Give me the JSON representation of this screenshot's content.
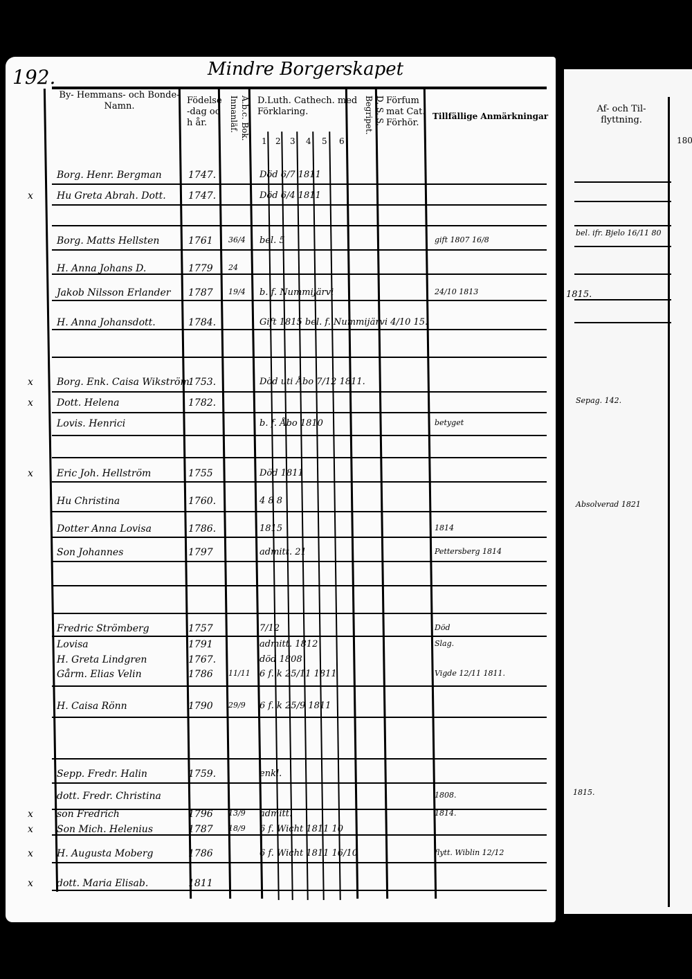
{
  "page_number": "192.",
  "title": "Mindre Borgerskapet",
  "headers": {
    "name": "By- Hemmans- och Bonde-Namn.",
    "birth": "Födelse-dag och år.",
    "abc": "A.b.c. Bok. Innanläf.",
    "catech": "D.Luth. Cathech. med Förklaring.",
    "catech_sub": [
      "1",
      "2",
      "3",
      "4",
      "5",
      "6"
    ],
    "dss": "D. S. S. Begripet.",
    "missed": "Förfummat Cat. Förhör.",
    "remarks": "Tillfällige Anmärkningar",
    "right_moves": "Af- och Til- flyttning.",
    "right_year": "180"
  },
  "entries": [
    {
      "mark": "",
      "name": "Borg. Henr. Bergman",
      "year": "1747.",
      "day": "",
      "notes": "Död 6/7 1811",
      "remarks": ""
    },
    {
      "mark": "x",
      "name": "Hu Greta Abrah. Dott.",
      "year": "1747.",
      "day": "",
      "notes": "Död 6/4 1811",
      "remarks": ""
    },
    {
      "mark": "",
      "name": "Borg. Matts Hellsten",
      "year": "1761",
      "day": "36/4",
      "notes": "bel. 5",
      "remarks": "gift 1807 16/8"
    },
    {
      "mark": "",
      "name": "H. Anna Johans D.",
      "year": "1779",
      "day": "24",
      "notes": "",
      "remarks": ""
    },
    {
      "mark": "",
      "name": "Jakob Nilsson Erlander",
      "year": "1787",
      "day": "19/4",
      "notes": "b. f. Nummijärvi",
      "remarks": "24/10 1813"
    },
    {
      "mark": "",
      "name": "H. Anna Johansdott.",
      "year": "1784.",
      "day": "",
      "notes": "Gift 1815 bel. f. Nummijärvi 4/10 15.",
      "remarks": ""
    },
    {
      "mark": "x",
      "name": "Borg. Enk. Caisa Wikström",
      "year": "1753.",
      "day": "",
      "notes": "Död uti Åbo 7/12 1811.",
      "remarks": ""
    },
    {
      "mark": "x",
      "name": "Dott. Helena",
      "year": "1782.",
      "day": "",
      "notes": "",
      "remarks": ""
    },
    {
      "mark": "",
      "name": "Lovis. Henrici",
      "year": "",
      "day": "",
      "notes": "b. f. Åbo 1810",
      "remarks": "betyget"
    },
    {
      "mark": "x",
      "name": "Eric Joh. Hellström",
      "year": "1755",
      "day": "",
      "notes": "Död 1811",
      "remarks": ""
    },
    {
      "mark": "",
      "name": "Hu Christina",
      "year": "1760.",
      "day": "",
      "notes": "4 8 8",
      "remarks": ""
    },
    {
      "mark": "",
      "name": "Dotter Anna Lovisa",
      "year": "1786.",
      "day": "",
      "notes": "1815",
      "remarks": "1814"
    },
    {
      "mark": "",
      "name": "Son Johannes",
      "year": "1797",
      "day": "",
      "notes": "admitt. 21",
      "remarks": "Pettersberg 1814"
    },
    {
      "mark": "",
      "name": "Fredric Strömberg",
      "year": "1757",
      "day": "",
      "notes": "7/12",
      "remarks": "Död"
    },
    {
      "mark": "",
      "name": "Lovisa",
      "year": "1791",
      "day": "",
      "notes": "admitt. 1812",
      "remarks": "Slag."
    },
    {
      "mark": "",
      "name": "H. Greta Lindgren",
      "year": "1767.",
      "day": "",
      "notes": "död 1808",
      "remarks": ""
    },
    {
      "mark": "",
      "name": "Gårm. Elias Velin",
      "year": "1786",
      "day": "11/11",
      "notes": "6 f. k 25/11 1811",
      "remarks": "Vigde 12/11 1811."
    },
    {
      "mark": "",
      "name": "H. Caisa Rönn",
      "year": "1790",
      "day": "29/9",
      "notes": "6 f. k 25/9 1811",
      "remarks": ""
    },
    {
      "mark": "",
      "name": "Sepp. Fredr. Halin",
      "year": "1759.",
      "day": "",
      "notes": "enkl.",
      "remarks": ""
    },
    {
      "mark": "",
      "name": "dott. Fredr. Christina",
      "year": "",
      "day": "",
      "notes": "",
      "remarks": "1808."
    },
    {
      "mark": "x",
      "name": "son Fredrich",
      "year": "1796",
      "day": "13/9",
      "notes": "admitt.",
      "remarks": "1814."
    },
    {
      "mark": "x",
      "name": "Son Mich. Helenius",
      "year": "1787",
      "day": "18/9",
      "notes": "6 f. Wicht 1811 10",
      "remarks": ""
    },
    {
      "mark": "x",
      "name": "H. Augusta Moberg",
      "year": "1786",
      "day": "",
      "notes": "6 f. Wicht 1811 16/10",
      "remarks": "flytt. Wiblin 12/12"
    },
    {
      "mark": "x",
      "name": "dott. Maria Elisab.",
      "year": "1811",
      "day": "",
      "notes": "",
      "remarks": ""
    }
  ],
  "right_notes": [
    "bel. ifr. Bjelo 16/11 80",
    "1815.",
    "Sepag. 142.",
    "Absolverad 1821",
    "1815."
  ]
}
